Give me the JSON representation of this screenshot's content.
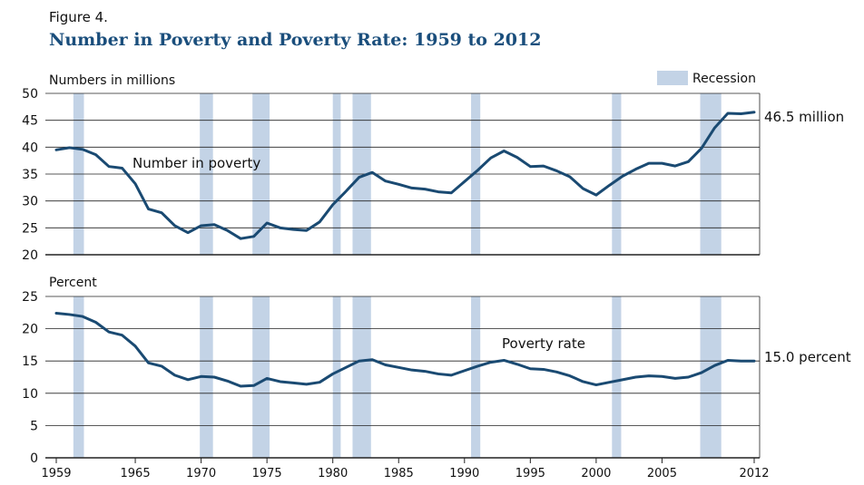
{
  "figure_label": "Figure 4.",
  "title": "Number in Poverty and Poverty Rate: 1959 to 2012",
  "colors": {
    "line": "#1a4a72",
    "recession": "#c3d3e6",
    "grid": "#222222",
    "title": "#1a4e7c"
  },
  "chart_data": [
    {
      "type": "line",
      "ylabel": "Numbers in millions",
      "ylim": [
        20,
        50
      ],
      "yticks": [
        "20",
        "25",
        "30",
        "35",
        "40",
        "45",
        "50"
      ],
      "series_label": "Number in poverty",
      "end_label": "46.5 million",
      "legend": "Recession",
      "x": [
        1959,
        1960,
        1961,
        1962,
        1963,
        1964,
        1965,
        1966,
        1967,
        1968,
        1969,
        1970,
        1971,
        1972,
        1973,
        1974,
        1975,
        1976,
        1977,
        1978,
        1979,
        1980,
        1981,
        1982,
        1983,
        1984,
        1985,
        1986,
        1987,
        1988,
        1989,
        1990,
        1991,
        1992,
        1993,
        1994,
        1995,
        1996,
        1997,
        1998,
        1999,
        2000,
        2001,
        2002,
        2003,
        2004,
        2005,
        2006,
        2007,
        2008,
        2009,
        2010,
        2011,
        2012
      ],
      "values": [
        39.5,
        39.9,
        39.6,
        38.6,
        36.4,
        36.1,
        33.2,
        28.5,
        27.8,
        25.4,
        24.1,
        25.4,
        25.6,
        24.5,
        23.0,
        23.4,
        25.9,
        25.0,
        24.7,
        24.5,
        26.1,
        29.3,
        31.8,
        34.4,
        35.3,
        33.7,
        33.1,
        32.4,
        32.2,
        31.7,
        31.5,
        33.6,
        35.7,
        38.0,
        39.3,
        38.1,
        36.4,
        36.5,
        35.6,
        34.5,
        32.3,
        31.1,
        32.9,
        34.6,
        35.9,
        37.0,
        37.0,
        36.5,
        37.3,
        39.8,
        43.6,
        46.3,
        46.2,
        46.5
      ]
    },
    {
      "type": "line",
      "ylabel": "Percent",
      "ylim": [
        0,
        25
      ],
      "yticks": [
        "0",
        "5",
        "10",
        "15",
        "20",
        "25"
      ],
      "series_label": "Poverty rate",
      "end_label": "15.0 percent",
      "x": [
        1959,
        1960,
        1961,
        1962,
        1963,
        1964,
        1965,
        1966,
        1967,
        1968,
        1969,
        1970,
        1971,
        1972,
        1973,
        1974,
        1975,
        1976,
        1977,
        1978,
        1979,
        1980,
        1981,
        1982,
        1983,
        1984,
        1985,
        1986,
        1987,
        1988,
        1989,
        1990,
        1991,
        1992,
        1993,
        1994,
        1995,
        1996,
        1997,
        1998,
        1999,
        2000,
        2001,
        2002,
        2003,
        2004,
        2005,
        2006,
        2007,
        2008,
        2009,
        2010,
        2011,
        2012
      ],
      "values": [
        22.4,
        22.2,
        21.9,
        21.0,
        19.5,
        19.0,
        17.3,
        14.7,
        14.2,
        12.8,
        12.1,
        12.6,
        12.5,
        11.9,
        11.1,
        11.2,
        12.3,
        11.8,
        11.6,
        11.4,
        11.7,
        13.0,
        14.0,
        15.0,
        15.2,
        14.4,
        14.0,
        13.6,
        13.4,
        13.0,
        12.8,
        13.5,
        14.2,
        14.8,
        15.1,
        14.5,
        13.8,
        13.7,
        13.3,
        12.7,
        11.8,
        11.3,
        11.7,
        12.1,
        12.5,
        12.7,
        12.6,
        12.3,
        12.5,
        13.2,
        14.3,
        15.1,
        15.0,
        15.0
      ]
    }
  ],
  "x_tick_labels": [
    "1959",
    "1965",
    "1970",
    "1975",
    "1980",
    "1985",
    "1990",
    "1995",
    "2000",
    "2005",
    "2012"
  ],
  "recessions": [
    [
      1960.3,
      1961.1
    ],
    [
      1969.9,
      1970.9
    ],
    [
      1973.9,
      1975.2
    ],
    [
      1980.0,
      1980.6
    ],
    [
      1981.5,
      1982.9
    ],
    [
      1990.5,
      1991.2
    ],
    [
      2001.2,
      2001.9
    ],
    [
      2007.9,
      2009.5
    ]
  ]
}
